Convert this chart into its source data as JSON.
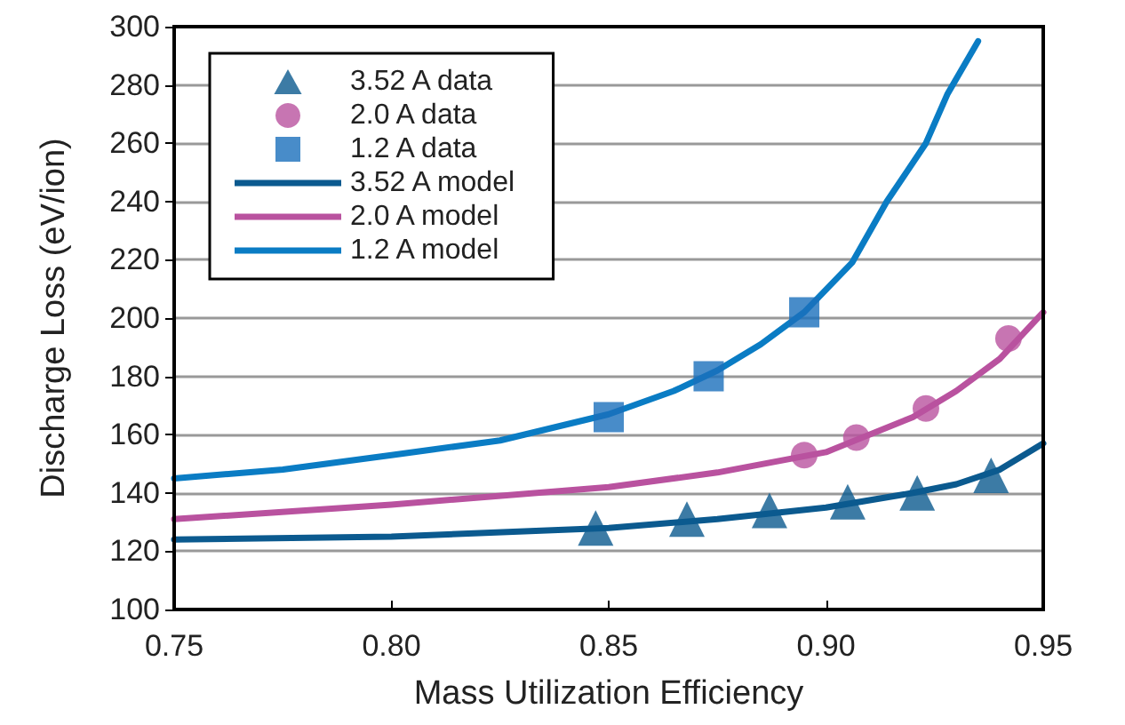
{
  "chart_data": {
    "type": "scatter",
    "xlabel": "Mass Utilization Efficiency",
    "ylabel": "Discharge Loss (eV/ion)",
    "xlim": [
      0.75,
      0.95
    ],
    "xticks": [
      0.75,
      {
        "value": 0.8,
        "label": "0.80"
      },
      0.85,
      {
        "value": 0.9,
        "label": "0.90"
      },
      0.95
    ],
    "ylim": [
      100,
      300
    ],
    "yticks": [
      100,
      120,
      140,
      160,
      180,
      200,
      220,
      240,
      260,
      280,
      300
    ],
    "grid": "y",
    "legend": "top left",
    "series": [
      {
        "name": "3.52 A data",
        "marker": "triangle",
        "color": "#0b5a8f",
        "x": [
          0.847,
          0.868,
          0.887,
          0.905,
          0.921,
          0.938
        ],
        "values": [
          128,
          131,
          134,
          137,
          140,
          146
        ]
      },
      {
        "name": "2.0 A data",
        "marker": "circle",
        "color": "#b9529f",
        "x": [
          0.895,
          0.907,
          0.923,
          0.942
        ],
        "values": [
          153,
          159,
          169,
          193
        ]
      },
      {
        "name": "1.2 A data",
        "marker": "square",
        "color": "#1a6fbb",
        "x": [
          0.85,
          0.873,
          0.895
        ],
        "values": [
          166,
          180,
          202
        ]
      },
      {
        "name": "3.52 A model",
        "type": "line",
        "color": "#0b5a8f",
        "x": [
          0.75,
          0.8,
          0.85,
          0.875,
          0.9,
          0.92,
          0.93,
          0.94,
          0.95
        ],
        "values": [
          124,
          125,
          128,
          131,
          135,
          140,
          143,
          148,
          157
        ]
      },
      {
        "name": "2.0 A model",
        "type": "line",
        "color": "#b9529f",
        "x": [
          0.75,
          0.8,
          0.85,
          0.875,
          0.9,
          0.92,
          0.93,
          0.94,
          0.95
        ],
        "values": [
          131,
          136,
          142,
          147,
          154,
          166,
          175,
          186,
          202
        ]
      },
      {
        "name": "1.2 A model",
        "type": "line",
        "color": "#0a7cc4",
        "x": [
          0.75,
          0.775,
          0.8,
          0.825,
          0.85,
          0.865,
          0.875,
          0.885,
          0.895,
          0.906,
          0.914,
          0.923,
          0.928,
          0.935
        ],
        "values": [
          145,
          148,
          153,
          158,
          167,
          175,
          182,
          191,
          202,
          219,
          240,
          260,
          277,
          295
        ]
      }
    ]
  }
}
